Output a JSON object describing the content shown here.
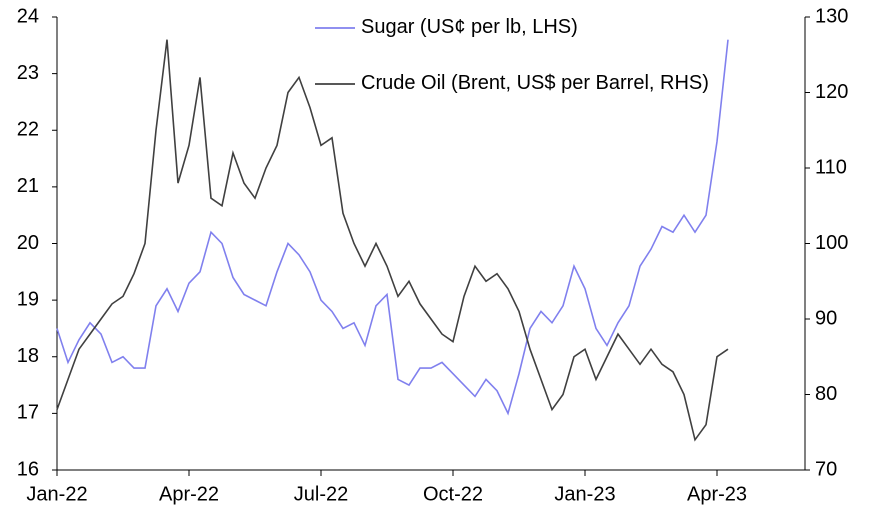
{
  "chart_data": {
    "type": "line",
    "x": [
      0,
      0.25,
      0.5,
      0.75,
      1,
      1.25,
      1.5,
      1.75,
      2,
      2.25,
      2.5,
      2.75,
      3,
      3.25,
      3.5,
      3.75,
      4,
      4.25,
      4.5,
      4.75,
      5,
      5.25,
      5.5,
      5.75,
      6,
      6.25,
      6.5,
      6.75,
      7,
      7.25,
      7.5,
      7.75,
      8,
      8.25,
      8.5,
      8.75,
      9,
      9.25,
      9.5,
      9.75,
      10,
      10.25,
      10.5,
      10.75,
      11,
      11.25,
      11.5,
      11.75,
      12,
      12.25,
      12.5,
      12.75,
      13,
      13.25,
      13.5,
      13.75,
      14,
      14.25,
      14.5,
      14.75,
      15,
      15.25
    ],
    "xlim": [
      0,
      17
    ],
    "xticks": [
      {
        "value": 0,
        "label": "Jan-22"
      },
      {
        "value": 3,
        "label": "Apr-22"
      },
      {
        "value": 6,
        "label": "Jul-22"
      },
      {
        "value": 9,
        "label": "Oct-22"
      },
      {
        "value": 12,
        "label": "Jan-23"
      },
      {
        "value": 15,
        "label": "Apr-23"
      }
    ],
    "ylim": [
      16,
      24
    ],
    "yticks": [
      16,
      17,
      18,
      19,
      20,
      21,
      22,
      23,
      24
    ],
    "y2lim": [
      70,
      130
    ],
    "y2ticks": [
      70,
      80,
      90,
      100,
      110,
      120,
      130
    ],
    "grid": false,
    "series": [
      {
        "name": "Sugar (US¢ per lb, LHS)",
        "color": "#8080ee",
        "values": [
          18.5,
          17.9,
          18.3,
          18.6,
          18.4,
          17.9,
          18.0,
          17.8,
          17.8,
          18.9,
          19.2,
          18.8,
          19.3,
          19.5,
          20.2,
          20.0,
          19.4,
          19.1,
          19.0,
          18.9,
          19.5,
          20.0,
          19.8,
          19.5,
          19.0,
          18.8,
          18.5,
          18.6,
          18.2,
          18.9,
          19.1,
          17.6,
          17.5,
          17.8,
          17.8,
          17.9,
          17.7,
          17.5,
          17.3,
          17.6,
          17.4,
          17.0,
          17.7,
          18.5,
          18.8,
          18.6,
          18.9,
          19.6,
          19.2,
          18.5,
          18.2,
          18.6,
          18.9,
          19.6,
          19.9,
          20.3,
          20.2,
          20.5,
          20.2,
          20.5,
          21.8,
          23.6
        ]
      },
      {
        "name": "Crude Oil (Brent, US$ per Barrel, RHS)",
        "color": "#404040",
        "axis": "y2",
        "values": [
          78,
          82,
          86,
          88,
          90,
          92,
          93,
          96,
          100,
          115,
          127,
          108,
          113,
          122,
          106,
          105,
          112,
          108,
          106,
          110,
          113,
          120,
          122,
          118,
          113,
          114,
          104,
          100,
          97,
          100,
          97,
          93,
          95,
          92,
          90,
          88,
          87,
          93,
          97,
          95,
          96,
          94,
          91,
          86,
          82,
          78,
          80,
          85,
          86,
          82,
          85,
          88,
          86,
          84,
          86,
          84,
          83,
          80,
          74,
          76,
          85,
          86
        ]
      }
    ]
  }
}
